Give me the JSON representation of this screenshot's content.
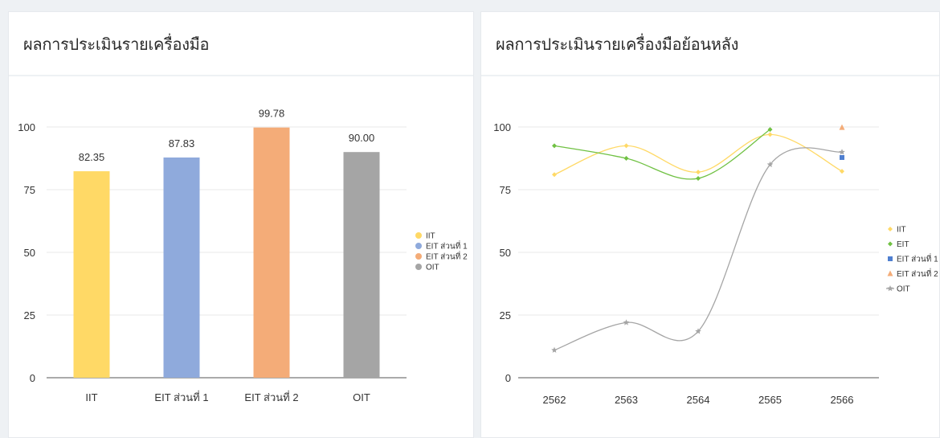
{
  "panels": {
    "left": {
      "title": "ผลการประเมินรายเครื่องมือ"
    },
    "right": {
      "title": "ผลการประเมินรายเครื่องมือย้อนหลัง"
    }
  },
  "chart_data": [
    {
      "type": "bar",
      "title": "ผลการประเมินรายเครื่องมือ",
      "categories": [
        "IIT",
        "EIT ส่วนที่ 1",
        "EIT ส่วนที่ 2",
        "OIT"
      ],
      "values": [
        82.35,
        87.83,
        99.78,
        90.0
      ],
      "data_labels": [
        "82.35",
        "87.83",
        "99.78",
        "90.00"
      ],
      "colors": [
        "#ffd966",
        "#8faadc",
        "#f4ac78",
        "#a5a5a5"
      ],
      "ylim": [
        0,
        100
      ],
      "yticks": [
        0,
        25,
        50,
        75,
        100
      ],
      "grid": true,
      "legend": {
        "position": "right",
        "entries": [
          {
            "name": "IIT",
            "color": "#ffd966"
          },
          {
            "name": "EIT ส่วนที่ 1",
            "color": "#8faadc"
          },
          {
            "name": "EIT ส่วนที่ 2",
            "color": "#f4ac78"
          },
          {
            "name": "OIT",
            "color": "#a5a5a5"
          }
        ]
      }
    },
    {
      "type": "line",
      "title": "ผลการประเมินรายเครื่องมือย้อนหลัง",
      "x": [
        "2562",
        "2563",
        "2564",
        "2565",
        "2566"
      ],
      "ylim": [
        0,
        100
      ],
      "yticks": [
        0,
        25,
        50,
        75,
        100
      ],
      "grid": true,
      "series": [
        {
          "name": "IIT",
          "color": "#ffd966",
          "marker": "diamond",
          "values": [
            81,
            92.5,
            82,
            97,
            82.35
          ]
        },
        {
          "name": "EIT",
          "color": "#70c143",
          "marker": "diamond",
          "values": [
            92.5,
            87.5,
            79.5,
            99,
            null
          ]
        },
        {
          "name": "EIT ส่วนที่ 1",
          "color": "#4f7fd0",
          "marker": "square",
          "values": [
            null,
            null,
            null,
            null,
            87.83
          ]
        },
        {
          "name": "EIT ส่วนที่ 2",
          "color": "#f4ac78",
          "marker": "triangle",
          "values": [
            null,
            null,
            null,
            null,
            99.78
          ]
        },
        {
          "name": "OIT",
          "color": "#a5a5a5",
          "marker": "star",
          "values": [
            11,
            22,
            18.5,
            85,
            90
          ]
        }
      ],
      "legend": {
        "position": "right"
      }
    }
  ]
}
